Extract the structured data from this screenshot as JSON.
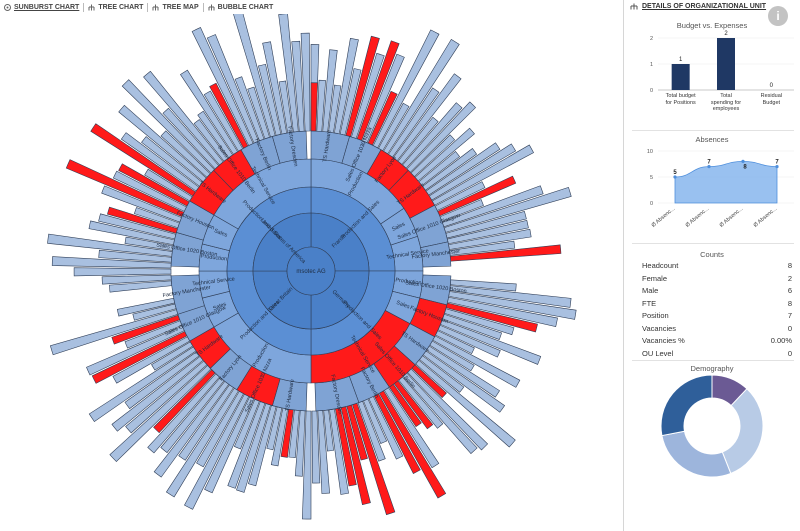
{
  "tabs": [
    {
      "label": "SUNBURST CHART",
      "active": true
    },
    {
      "label": "TREE CHART",
      "active": false
    },
    {
      "label": "TREE MAP",
      "active": false
    },
    {
      "label": "BUBBLE CHART",
      "active": false
    }
  ],
  "sunburst": {
    "root": "msotec AG",
    "level1": [
      "France",
      "Germany",
      "Great Britain",
      "United States of America"
    ],
    "level2": [
      "Production and Sales",
      "Production and Sales",
      "Production and Sales",
      "Production and Sales"
    ],
    "level3": [
      "Production",
      "Sales",
      "Technical Service",
      "Production",
      "Sales",
      "Technical Service",
      "Production",
      "Sales",
      "Technical Service",
      "Production",
      "Sales",
      "Technical Service"
    ],
    "level4": [
      "TS Hardware",
      "Sales Office 1030 Nizza",
      "Factory Lyon",
      "TS Hardware",
      "Sales Office 1010 Glasgow",
      "Factory Manchester",
      "Sales Office 1020 Boston",
      "Factory Houston",
      "TS Hardware",
      "Sales Office 1010 Berlin",
      "Factory Berlin",
      "Factory Dresden"
    ],
    "colors": {
      "core": "#4a80c8",
      "ring1": "#5b8fd4",
      "ring2": "#7ea6dc",
      "ring3": "#7fa3d4",
      "outer": "#a9c0e0",
      "highlight": "#ff1a1a",
      "stroke": "#2f3e57"
    }
  },
  "panel": {
    "title": "DETAILS OF ORGANIZATIONAL UNIT",
    "info_icon": "i",
    "budget": {
      "title": "Budget vs. Expenses",
      "chart_data": {
        "type": "bar",
        "title": "Budget vs. Expenses",
        "categories": [
          "Total budget for Positions",
          "Total spending for employees",
          "Residual Budget"
        ],
        "values": [
          1,
          2,
          0
        ],
        "ylim": [
          0,
          2
        ],
        "yticks": [
          "0",
          "1",
          "2"
        ],
        "color": "#1f3864"
      },
      "labels": [
        "Total budget\nfor Positions",
        "Total\nspending for\nemployees",
        "Residual\nBudget"
      ],
      "value_labels": [
        "1",
        "2",
        "0"
      ]
    },
    "absences": {
      "title": "Absences",
      "chart_data": {
        "type": "area",
        "title": "Absences",
        "categories": [
          "Ø Absenc...",
          "Ø Absenc...",
          "Ø Absenc...",
          "Ø Absenc..."
        ],
        "values": [
          5,
          7,
          8,
          7
        ],
        "ylim": [
          0,
          10
        ],
        "yticks": [
          "0",
          "5",
          "10"
        ],
        "color": "#7fb2ec"
      },
      "value_labels": [
        "5",
        "7",
        "8",
        "7"
      ]
    },
    "counts": {
      "title": "Counts",
      "rows": [
        {
          "label": "Headcount",
          "value": "8"
        },
        {
          "label": "Female",
          "value": "2"
        },
        {
          "label": "Male",
          "value": "6"
        },
        {
          "label": "FTE",
          "value": "8"
        },
        {
          "label": "Position",
          "value": "7"
        },
        {
          "label": "Vacancies",
          "value": "0"
        },
        {
          "label": "Vacancies %",
          "value": "0.00%"
        },
        {
          "label": "OU Level",
          "value": "0"
        }
      ]
    },
    "demography": {
      "title": "Demography",
      "chart_data": {
        "type": "pie",
        "title": "Demography",
        "values": [
          12,
          32,
          28,
          28
        ],
        "colors": [
          "#6b5a94",
          "#b8cbe6",
          "#9db5dc",
          "#2f5f9a"
        ]
      }
    }
  }
}
